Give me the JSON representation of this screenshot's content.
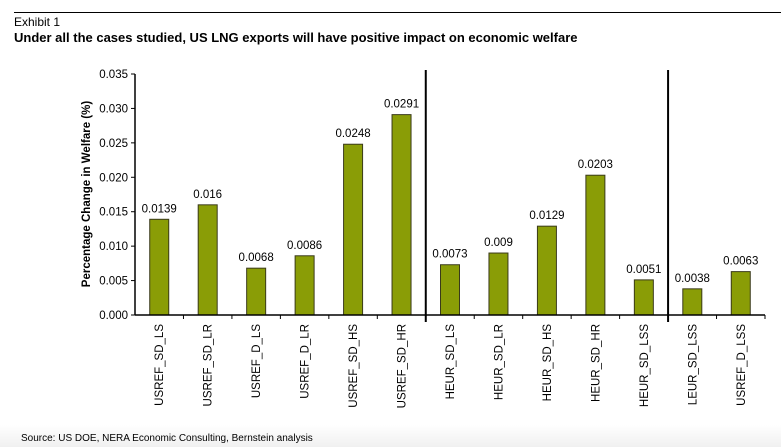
{
  "header": {
    "exhibit": "Exhibit 1",
    "title": "Under all the cases studied, US LNG exports will have positive impact on economic welfare"
  },
  "footer": {
    "source": "Source: US DOE, NERA Economic Consulting, Bernstein analysis"
  },
  "colors": {
    "bar_fill": "#8a9d06",
    "bar_stroke": "#3a3a1a",
    "axis": "#000000"
  },
  "chart_data": {
    "type": "bar",
    "title": "Under all the cases studied, US LNG exports will have positive impact on economic welfare",
    "xlabel": "",
    "ylabel": "Percentage Change in Welfare (%)",
    "ylim": [
      0,
      0.035
    ],
    "yticks": [
      "0.000",
      "0.005",
      "0.010",
      "0.015",
      "0.020",
      "0.025",
      "0.030",
      "0.035"
    ],
    "grid": false,
    "legend": "none",
    "categories": [
      "USREF_SD_LS",
      "USREF_SD_LR",
      "USREF_D_LS",
      "USREF_D_LR",
      "USREF_SD_HS",
      "USREF_SD_HR",
      "HEUR_SD_LS",
      "HEUR_SD_LR",
      "HEUR_SD_HS",
      "HEUR_SD_HR",
      "HEUR_SD_LSS",
      "LEUR_SD_LSS",
      "USREF_D_LSS"
    ],
    "values": [
      0.0139,
      0.016,
      0.0068,
      0.0086,
      0.0248,
      0.0291,
      0.0073,
      0.009,
      0.0129,
      0.0203,
      0.0051,
      0.0038,
      0.0063
    ],
    "value_labels": [
      "0.0139",
      "0.016",
      "0.0068",
      "0.0086",
      "0.0248",
      "0.0291",
      "0.0073",
      "0.009",
      "0.0129",
      "0.0203",
      "0.0051",
      "0.0038",
      "0.0063"
    ],
    "group_separators_after_index": [
      5,
      10
    ]
  }
}
